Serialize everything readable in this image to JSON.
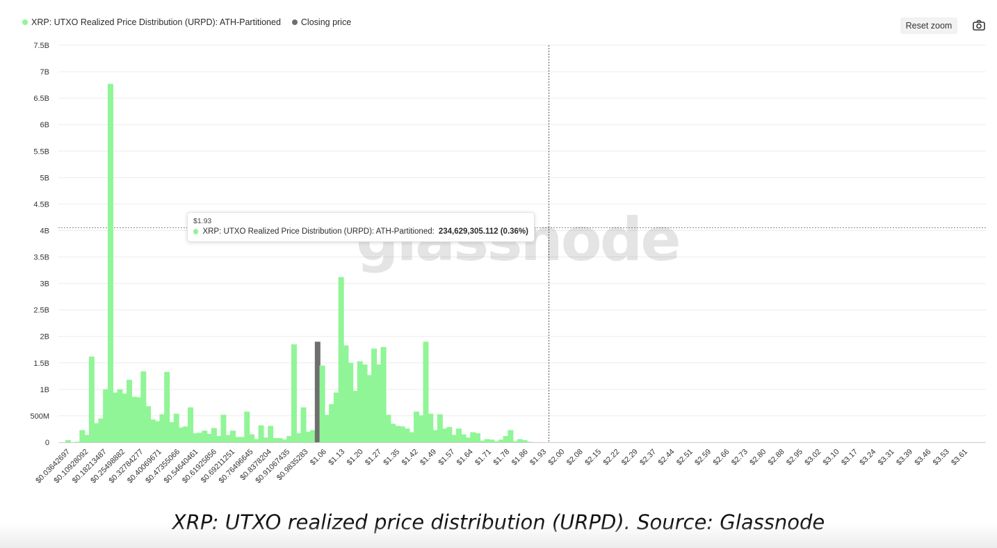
{
  "legend": {
    "series_label": "XRP: UTXO Realized Price Distribution (URPD): ATH-Partitioned",
    "closing_label": "Closing price"
  },
  "toolbar": {
    "reset_zoom": "Reset zoom",
    "camera_icon": "camera-icon"
  },
  "watermark": "glassnode",
  "tooltip": {
    "x": "$1.93",
    "series": "XRP: UTXO Realized Price Distribution (URPD): ATH-Partitioned:",
    "value": "234,629,305.112 (0.36%)"
  },
  "caption": "XRP: UTXO realized price distribution (URPD). Source: Glassnode",
  "colors": {
    "bar": "#90f596",
    "closing_bar": "#6e6e6e",
    "grid": "#ececec",
    "axis_text": "#333333"
  },
  "chart_data": {
    "type": "bar",
    "y_ticks": [
      "0",
      "500M",
      "1B",
      "1.5B",
      "2B",
      "2.5B",
      "3B",
      "3.5B",
      "4B",
      "4.5B",
      "5B",
      "5.5B",
      "6B",
      "6.5B",
      "7B",
      "7.5B"
    ],
    "ylim": [
      0,
      7500000000
    ],
    "x_tick_labels": [
      "$0.03642697",
      "$0.10928092",
      "$0.18213487",
      "$0.25498882",
      "$0.32784277",
      "$0.40069671",
      "$0.47355066",
      "$0.54640461",
      "$0.61925856",
      "$0.69211251",
      "$0.76496645",
      "$0.8378204",
      "$0.91067435",
      "$0.9835283",
      "$1.06",
      "$1.13",
      "$1.20",
      "$1.27",
      "$1.35",
      "$1.42",
      "$1.49",
      "$1.57",
      "$1.64",
      "$1.71",
      "$1.78",
      "$1.86",
      "$1.93",
      "$2.00",
      "$2.08",
      "$2.15",
      "$2.22",
      "$2.29",
      "$2.37",
      "$2.44",
      "$2.51",
      "$2.59",
      "$2.66",
      "$2.73",
      "$2.80",
      "$2.88",
      "$2.95",
      "$3.02",
      "$3.10",
      "$3.17",
      "$3.24",
      "$3.31",
      "$3.39",
      "$3.46",
      "$3.53",
      "$3.61"
    ],
    "values": [
      0.04,
      0,
      0.01,
      0.23,
      0.14,
      1.62,
      0.36,
      0.45,
      1.0,
      6.77,
      0.94,
      1.0,
      0.92,
      1.18,
      0.86,
      0.85,
      1.34,
      0.68,
      0.43,
      0.4,
      0.53,
      1.33,
      0.38,
      0.54,
      0.28,
      0.3,
      0.66,
      0.17,
      0.18,
      0.22,
      0.16,
      0.27,
      0.12,
      0.52,
      0.14,
      0.22,
      0.1,
      0.1,
      0.58,
      0.15,
      0.06,
      0.32,
      0.09,
      0.31,
      0.08,
      0.08,
      0.05,
      0.12,
      1.85,
      0.17,
      0.66,
      0.2,
      0.23,
      1.9,
      1.45,
      0.52,
      0.72,
      0.94,
      3.12,
      1.83,
      1.5,
      0.97,
      1.53,
      1.47,
      1.27,
      1.77,
      1.47,
      1.8,
      0.52,
      0.35,
      0.31,
      0.3,
      0.26,
      0.19,
      0.58,
      0.51,
      1.9,
      0.54,
      0.23,
      0.53,
      0.26,
      0.29,
      0.14,
      0.26,
      0.15,
      0.09,
      0.19,
      0.17,
      0.03,
      0.06,
      0.05,
      0.02,
      0.05,
      0.12,
      0.23,
      0.02,
      0.06,
      0.04,
      0.01
    ],
    "values_unit": "billions",
    "closing_bar_index": 53,
    "hover_index": 52,
    "hover_value": 234629305.112,
    "legend_placement": "top-left",
    "grid": true
  }
}
